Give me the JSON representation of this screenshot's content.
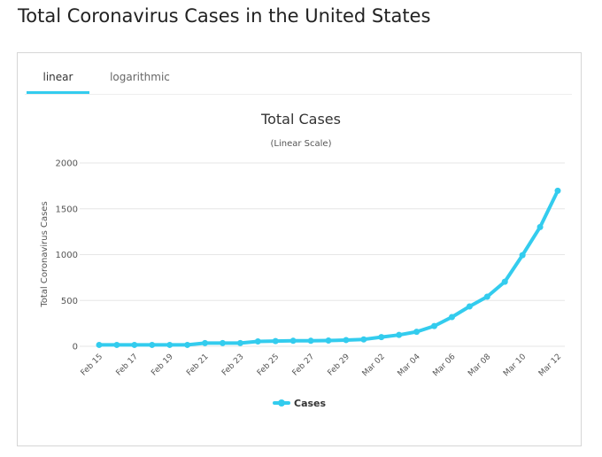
{
  "page": {
    "title": "Total Coronavirus Cases in the United States"
  },
  "tabs": [
    {
      "label": "linear",
      "active": true
    },
    {
      "label": "logarithmic",
      "active": false
    }
  ],
  "colors": {
    "accent": "#33ccee",
    "series": "#33ccee",
    "grid": "#e6e6e6"
  },
  "chart_data": {
    "type": "line",
    "title": "Total Cases",
    "subtitle": "(Linear Scale)",
    "xlabel": "",
    "ylabel": "Total Coronavirus Cases",
    "ylim": [
      0,
      2000
    ],
    "yticks": [
      0,
      500,
      1000,
      1500,
      2000
    ],
    "grid": true,
    "legend": "bottom-center",
    "x": [
      "Feb 15",
      "Feb 16",
      "Feb 17",
      "Feb 18",
      "Feb 19",
      "Feb 20",
      "Feb 21",
      "Feb 22",
      "Feb 23",
      "Feb 24",
      "Feb 25",
      "Feb 26",
      "Feb 27",
      "Feb 28",
      "Feb 29",
      "Mar 01",
      "Mar 02",
      "Mar 03",
      "Mar 04",
      "Mar 05",
      "Mar 06",
      "Mar 07",
      "Mar 08",
      "Mar 09",
      "Mar 10",
      "Mar 11",
      "Mar 12"
    ],
    "xtick_labels": [
      "Feb 15",
      "Feb 17",
      "Feb 19",
      "Feb 21",
      "Feb 23",
      "Feb 25",
      "Feb 27",
      "Feb 29",
      "Mar 02",
      "Mar 04",
      "Mar 06",
      "Mar 08",
      "Mar 10",
      "Mar 12"
    ],
    "series": [
      {
        "name": "Cases",
        "values": [
          15,
          15,
          15,
          15,
          15,
          15,
          35,
          35,
          35,
          53,
          57,
          60,
          60,
          63,
          68,
          75,
          100,
          124,
          158,
          221,
          319,
          435,
          541,
          704,
          994,
          1301,
          1697
        ]
      }
    ]
  }
}
